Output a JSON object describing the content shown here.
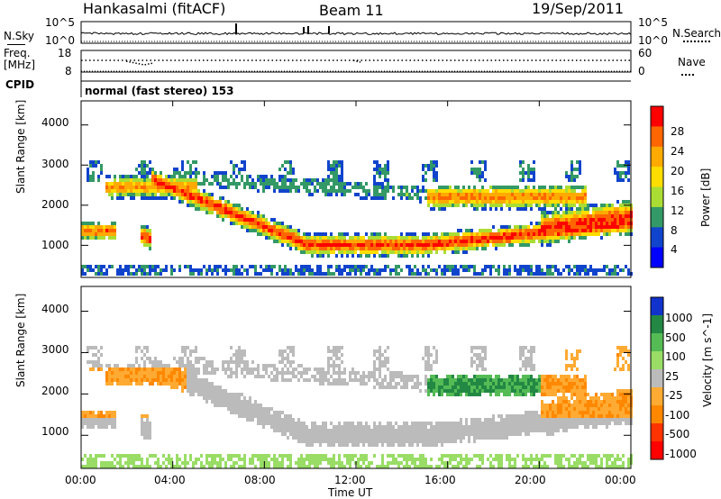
{
  "header": {
    "radar": "Hankasalmi (fitACF)",
    "beam": "Beam 11",
    "date": "19/Sep/2011"
  },
  "top_panel": {
    "left_label": "N.Sky",
    "right_label": "N.Search",
    "left_ticks": [
      "10^5",
      "10^0"
    ],
    "right_ticks": [
      "10^5",
      "10^0"
    ]
  },
  "freq_panel": {
    "label_line1": "Freq.",
    "label_line2": "[MHz]",
    "left_ticks": [
      "18",
      "8"
    ],
    "right_ticks": [
      "60",
      "0"
    ],
    "right_label": "Nave"
  },
  "cpid": {
    "label": "CPID",
    "text": "normal (fast stereo) 153"
  },
  "chart_data": [
    {
      "type": "heatmap",
      "name": "power",
      "ylabel": "Slant Range [km]",
      "y_ticks": [
        "4000",
        "3000",
        "2000",
        "1000"
      ],
      "ylim": [
        200,
        4600
      ],
      "colorbar": {
        "label": "Power [dB]",
        "ticks": [
          "28",
          "24",
          "20",
          "16",
          "12",
          "8",
          "4"
        ],
        "colors": [
          "#ff0000",
          "#ff6600",
          "#ffaa00",
          "#ffdd00",
          "#aadd33",
          "#339966",
          "#1144cc",
          "#0000ff"
        ]
      }
    },
    {
      "type": "heatmap",
      "name": "velocity",
      "ylabel": "Slant Range [km]",
      "y_ticks": [
        "4000",
        "3000",
        "2000",
        "1000"
      ],
      "ylim": [
        200,
        4600
      ],
      "colorbar": {
        "label": "Velocity [m s^-1]",
        "ticks": [
          "1000",
          "500",
          "100",
          "25",
          "-25",
          "-100",
          "-500",
          "-1000"
        ],
        "colors": [
          "#1133cc",
          "#228844",
          "#55bb55",
          "#99dd66",
          "#bbbbbb",
          "#ffaa33",
          "#ff8800",
          "#ff3300",
          "#ff0000"
        ]
      }
    }
  ],
  "x_axis": {
    "ticks": [
      "00:00",
      "04:00",
      "08:00",
      "12:00",
      "16:00",
      "20:00",
      "00:00"
    ],
    "label": "Time UT"
  }
}
